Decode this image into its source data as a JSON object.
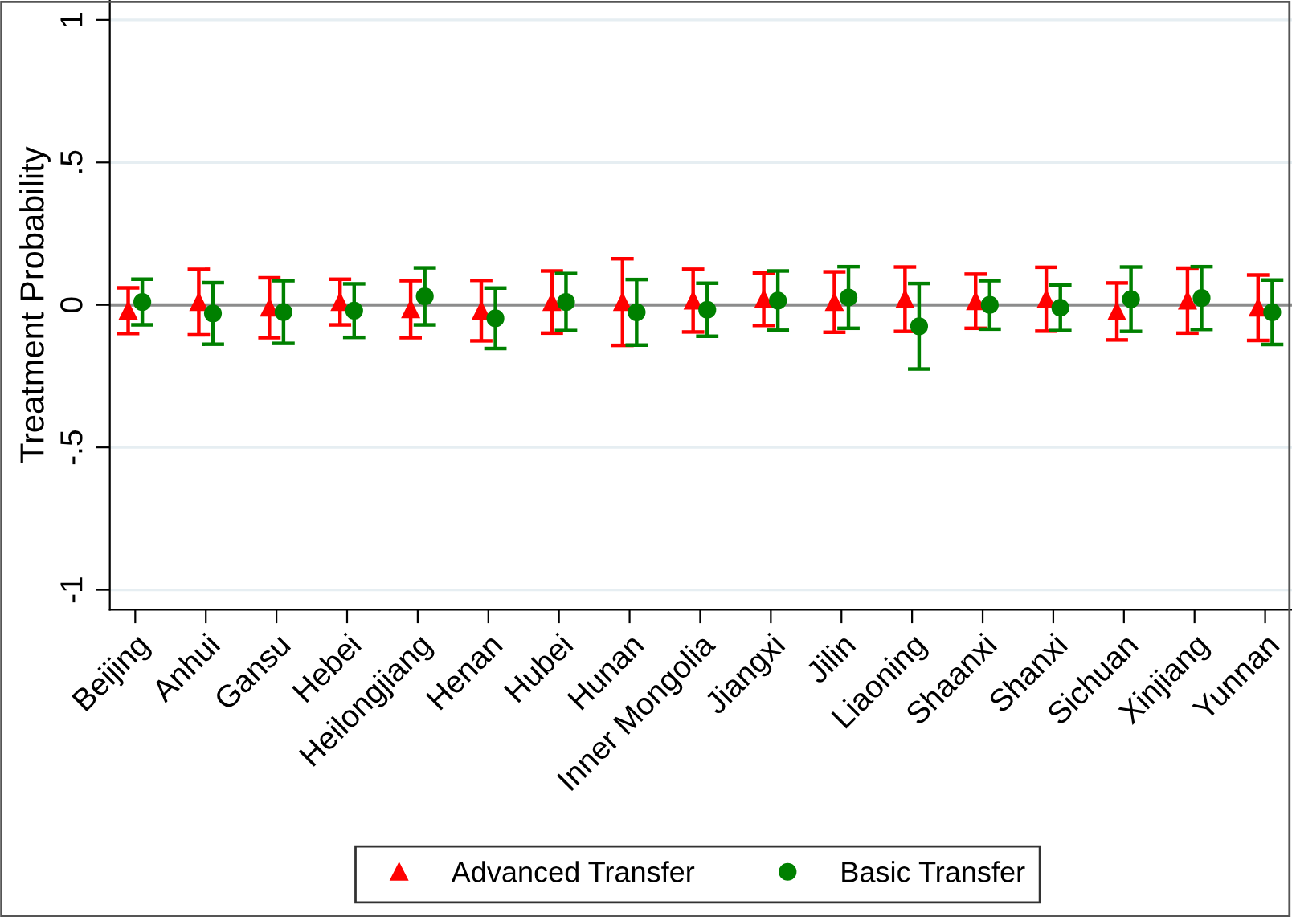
{
  "chart_data": {
    "type": "scatter",
    "ylabel": "Treatment Probability",
    "categories": [
      "Beijing",
      "Anhui",
      "Gansu",
      "Hebei",
      "Heilongjiang",
      "Henan",
      "Hubei",
      "Hunan",
      "Inner Mongolia",
      "Jiangxi",
      "Jilin",
      "Liaoning",
      "Shaanxi",
      "Shanxi",
      "Sichuan",
      "Xinjiang",
      "Yunnan"
    ],
    "series": [
      {
        "name": "Advanced Transfer",
        "color": "#ff0000",
        "marker": "triangle",
        "values": [
          -0.02,
          0.01,
          -0.01,
          0.01,
          -0.015,
          -0.02,
          0.01,
          0.01,
          0.015,
          0.02,
          0.01,
          0.02,
          0.013,
          0.02,
          -0.023,
          0.015,
          -0.01
        ],
        "errors": [
          0.08,
          0.115,
          0.105,
          0.08,
          0.1,
          0.106,
          0.109,
          0.152,
          0.11,
          0.092,
          0.106,
          0.113,
          0.095,
          0.112,
          0.1,
          0.114,
          0.115
        ]
      },
      {
        "name": "Basic Transfer",
        "color": "#008000",
        "marker": "circle",
        "values": [
          0.01,
          -0.03,
          -0.025,
          -0.02,
          0.03,
          -0.047,
          0.01,
          -0.026,
          -0.017,
          0.015,
          0.026,
          -0.075,
          0,
          -0.01,
          0.02,
          0.024,
          -0.026
        ],
        "errors": [
          0.08,
          0.108,
          0.11,
          0.094,
          0.1,
          0.106,
          0.1,
          0.115,
          0.093,
          0.104,
          0.108,
          0.15,
          0.085,
          0.08,
          0.113,
          0.11,
          0.113
        ]
      }
    ],
    "ylim": [
      -1.07,
      1.07
    ],
    "yticks": [
      1,
      {
        "value": 0.5,
        "label": ".5"
      },
      0,
      {
        "value": -0.5,
        "label": "-.5"
      },
      -1
    ],
    "grid": "y",
    "legend": "bottom",
    "ref_lines": [
      {
        "axis": "y",
        "value": 0,
        "color": "#8c8c8c"
      }
    ]
  }
}
